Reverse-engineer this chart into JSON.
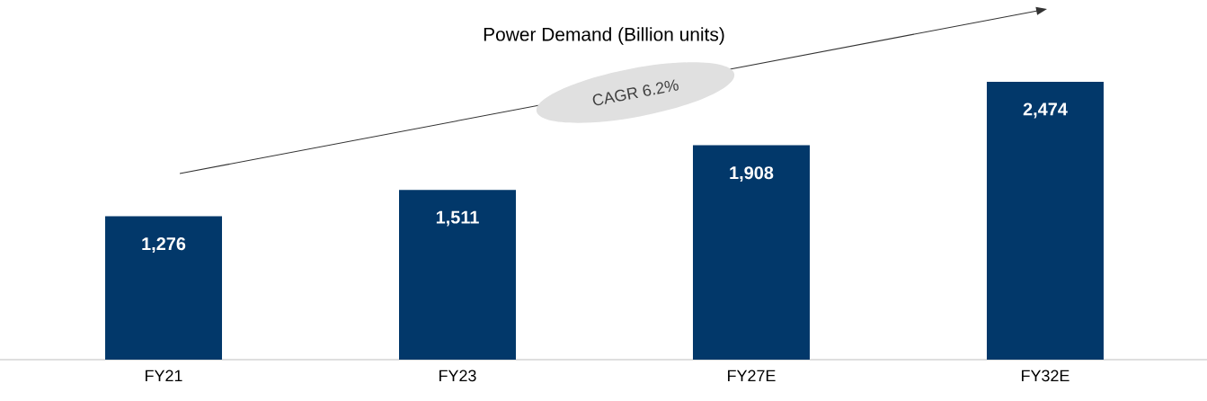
{
  "chart_data": {
    "type": "bar",
    "title": "Power Demand (Billion units)",
    "categories": [
      "FY21",
      "FY23",
      "FY27E",
      "FY32E"
    ],
    "values": [
      1276,
      1511,
      1908,
      2474
    ],
    "value_labels": [
      "1,276",
      "1,511",
      "1,908",
      "2,474"
    ],
    "color": "#02386a",
    "annotations": [
      "CAGR 6.2%"
    ]
  }
}
